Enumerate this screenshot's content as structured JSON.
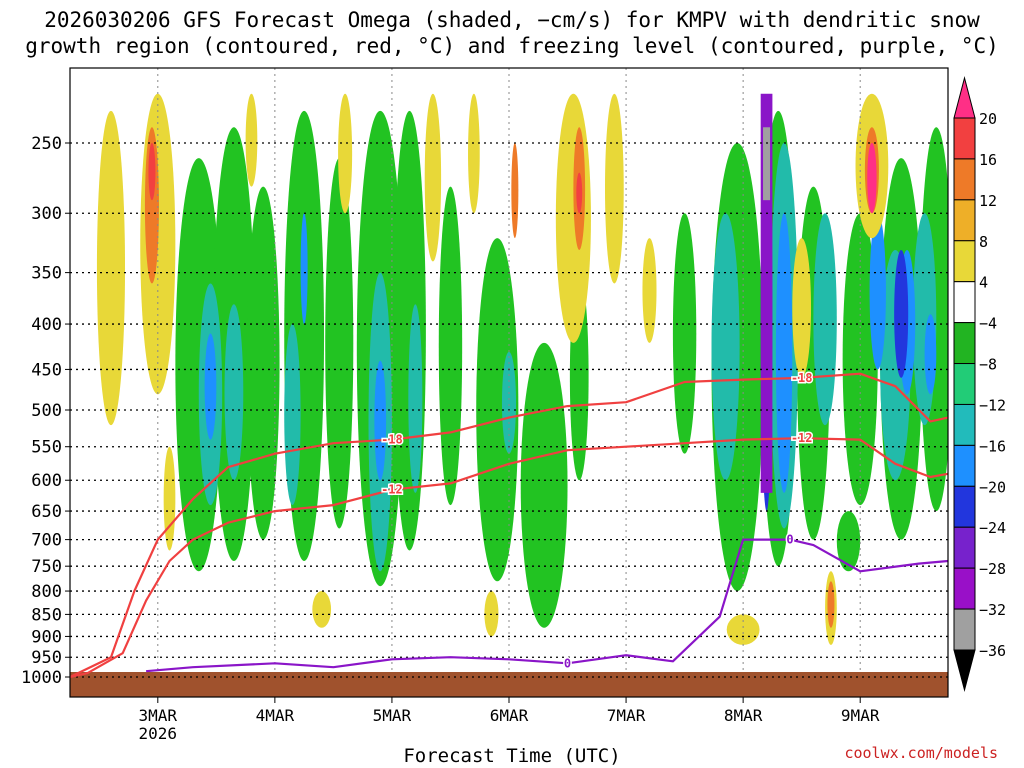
{
  "chart_data": {
    "type": "heatmap",
    "title": "2026030206 GFS Forecast Omega (shaded, −cm/s) for KMPV with dendritic snow",
    "subtitle": "growth region (contoured, red, °C) and freezing level (contoured, purple, °C)",
    "xlabel": "Forecast Time (UTC)",
    "ylabel": "",
    "watermark": "coolwx.com/models",
    "x_ticks": [
      {
        "label": "3MAR",
        "day": 3
      },
      {
        "label": "4MAR",
        "day": 4
      },
      {
        "label": "5MAR",
        "day": 5
      },
      {
        "label": "6MAR",
        "day": 6
      },
      {
        "label": "7MAR",
        "day": 7
      },
      {
        "label": "8MAR",
        "day": 8
      },
      {
        "label": "9MAR",
        "day": 9
      }
    ],
    "x_sublabel": "2026",
    "xlim_days": [
      2.25,
      9.75
    ],
    "y_levels_hpa": [
      250,
      300,
      350,
      400,
      450,
      500,
      550,
      600,
      650,
      700,
      750,
      800,
      850,
      900,
      950,
      1000
    ],
    "colorbar": {
      "labels": [
        "20",
        "16",
        "12",
        "8",
        "4",
        "−4",
        "−8",
        "−12",
        "−16",
        "−20",
        "−24",
        "−28",
        "−32",
        "−36"
      ],
      "colors": [
        "#ff2f86",
        "#f24040",
        "#ee7a28",
        "#eeaf28",
        "#e8d838",
        "#ffffff",
        "#22b422",
        "#22cc77",
        "#22bbbb",
        "#1e90ff",
        "#2236dd",
        "#7722cc",
        "#9910c8",
        "#a0a0a0",
        "#000000"
      ]
    },
    "shading_colors": {
      "green": "#22c322",
      "teal": "#22bbaa",
      "blue": "#1e90ff",
      "darkblue": "#2236dd",
      "purple": "#8a15c8",
      "yellow": "#e8d838",
      "orange": "#ee7a28",
      "red": "#f24040",
      "pink": "#ff2f86",
      "gray": "#a0a0a0",
      "ground": "#a0522d"
    },
    "contours": [
      {
        "name": "-18 C",
        "label": "-18",
        "color": "#f04040",
        "day": [
          2.25,
          2.6,
          2.8,
          3.0,
          3.3,
          3.6,
          4.0,
          4.5,
          5.0,
          5.5,
          6.0,
          6.5,
          7.0,
          7.5,
          8.0,
          8.5,
          9.0,
          9.3,
          9.6,
          9.75
        ],
        "pressure": [
          1000,
          950,
          800,
          700,
          630,
          580,
          560,
          545,
          540,
          530,
          510,
          495,
          490,
          465,
          462,
          460,
          455,
          470,
          515,
          510
        ]
      },
      {
        "name": "-12 C",
        "label": "-12",
        "color": "#f04040",
        "day": [
          2.25,
          2.4,
          2.7,
          2.9,
          3.1,
          3.3,
          3.6,
          4.0,
          4.5,
          5.0,
          5.5,
          6.0,
          6.5,
          7.0,
          7.5,
          8.0,
          8.5,
          9.0,
          9.3,
          9.6,
          9.75
        ],
        "pressure": [
          1000,
          990,
          940,
          820,
          740,
          700,
          670,
          650,
          640,
          615,
          605,
          575,
          555,
          550,
          545,
          540,
          538,
          540,
          575,
          595,
          590
        ]
      },
      {
        "name": "0 C freezing level",
        "label": "0",
        "color": "#8a15c8",
        "day": [
          2.9,
          3.3,
          4.0,
          4.5,
          5.0,
          5.5,
          6.0,
          6.5,
          7.0,
          7.4,
          7.8,
          8.0,
          8.4,
          8.6,
          9.0,
          9.5,
          9.75
        ],
        "pressure": [
          985,
          975,
          965,
          975,
          955,
          950,
          955,
          965,
          945,
          960,
          855,
          700,
          700,
          710,
          760,
          745,
          740
        ]
      }
    ]
  }
}
